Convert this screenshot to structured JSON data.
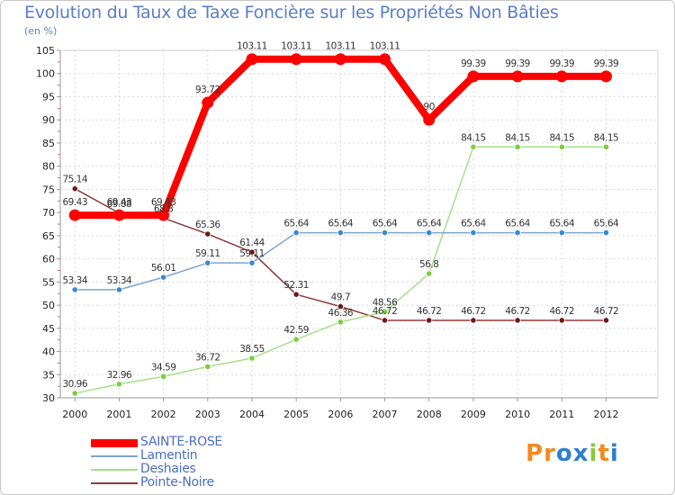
{
  "title": "Evolution du Taux de Taxe Foncière sur les Propriétés Non Bâties",
  "subtitle": "(en %)",
  "logo": {
    "text": "Proxiti",
    "letters": [
      "P",
      "r",
      "o",
      "x",
      "i",
      "t",
      "i"
    ],
    "colors": [
      "#f28a1e",
      "#f28a1e",
      "#2e7fd1",
      "#2e7fd1",
      "#8cc63f",
      "#f28a1e",
      "#2e7fd1"
    ]
  },
  "chart_data": {
    "type": "line",
    "title": "Evolution du Taux de Taxe Foncière sur les Propriétés Non Bâties",
    "ylabel": "(en %)",
    "xlabel": "",
    "x": [
      "2000",
      "2001",
      "2002",
      "2003",
      "2004",
      "2005",
      "2006",
      "2007",
      "2008",
      "2009",
      "2010",
      "2011",
      "2012"
    ],
    "ylim": [
      30,
      105
    ],
    "yticks": [
      30,
      35,
      40,
      45,
      50,
      55,
      60,
      65,
      70,
      75,
      80,
      85,
      90,
      95,
      100,
      105
    ],
    "grid": true,
    "legend": "bottom-left",
    "series": [
      {
        "name": "SAINTE-ROSE",
        "color": "#ff0000",
        "markerColor": "#ff0000",
        "width": 8,
        "marker": 6.5,
        "values": [
          69.43,
          69.43,
          69.43,
          93.72,
          103.11,
          103.11,
          103.11,
          103.11,
          90,
          99.39,
          99.39,
          99.39,
          99.39
        ],
        "labels": [
          "69.43",
          "69.43",
          "69.43",
          "93.72",
          "103.11",
          "103.11",
          "103.11",
          "103.11",
          "90",
          "99.39",
          "99.39",
          "99.39",
          "99.39"
        ]
      },
      {
        "name": "Lamentin",
        "color": "#7ca6cf",
        "markerColor": "#3b87d0",
        "width": 1.5,
        "marker": 3.2,
        "values": [
          53.34,
          53.34,
          56.01,
          59.11,
          59.11,
          65.64,
          65.64,
          65.64,
          65.64,
          65.64,
          65.64,
          65.64,
          65.64
        ],
        "labels": [
          "53.34",
          "53.34",
          "56.01",
          "59.11",
          "59.11",
          "65.64",
          "65.64",
          "65.64",
          "65.64",
          "65.64",
          "65.64",
          "65.64",
          "65.64"
        ]
      },
      {
        "name": "Deshaies",
        "color": "#a6e08a",
        "markerColor": "#7acd3c",
        "width": 1.5,
        "marker": 3.2,
        "values": [
          30.96,
          32.96,
          34.59,
          36.72,
          38.55,
          42.59,
          46.36,
          48.56,
          56.8,
          84.15,
          84.15,
          84.15,
          84.15
        ],
        "labels": [
          "30.96",
          "32.96",
          "34.59",
          "36.72",
          "38.55",
          "42.59",
          "46.36",
          "48.56",
          "56.8",
          "84.15",
          "84.15",
          "84.15",
          "84.15"
        ]
      },
      {
        "name": "Pointe-Noire",
        "color": "#8b3a3a",
        "markerColor": "#6e1818",
        "width": 1.5,
        "marker": 3.2,
        "values": [
          75.14,
          69.88,
          68.8,
          65.36,
          61.44,
          52.31,
          49.7,
          46.72,
          46.72,
          46.72,
          46.72,
          46.72,
          46.72
        ],
        "labels": [
          "75.14",
          "69.88",
          "68.8",
          "65.36",
          "61.44",
          "52.31",
          "49.7",
          "46.72",
          "46.72",
          "46.72",
          "46.72",
          "46.72",
          "46.72"
        ]
      }
    ]
  }
}
